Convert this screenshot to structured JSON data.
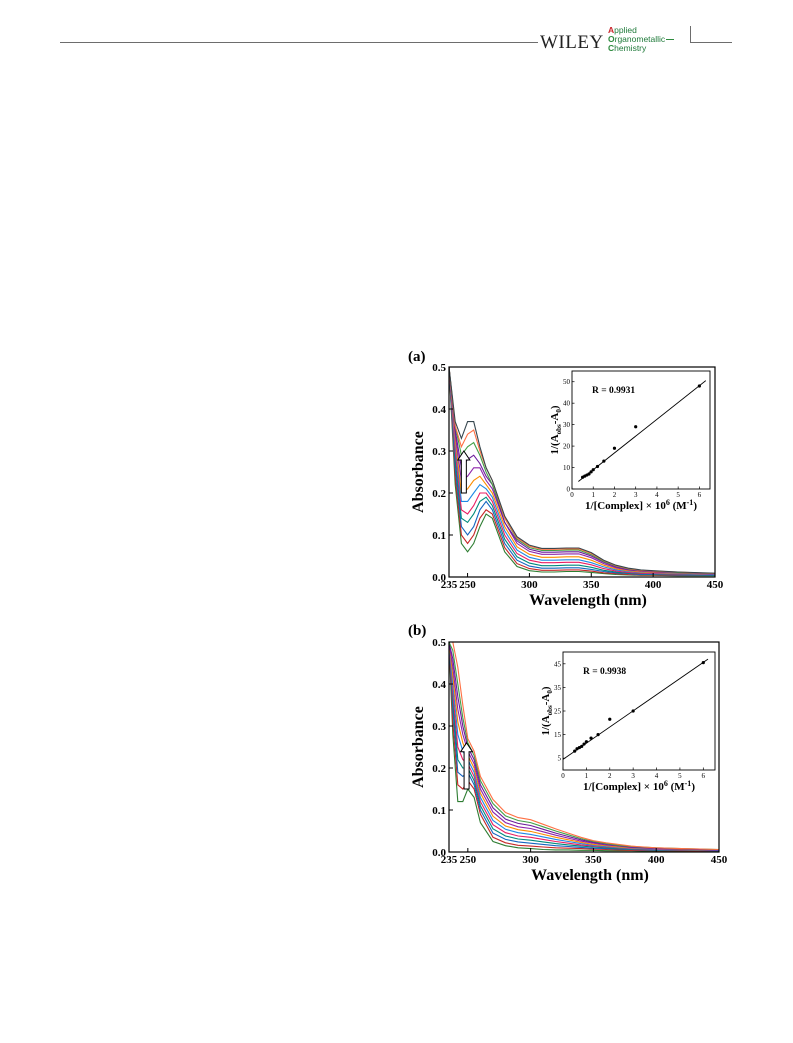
{
  "header": {
    "publisher": "WILEY",
    "journal_lines": [
      {
        "first": "A",
        "rest": "pplied"
      },
      {
        "first": "O",
        "rest": "rganometallic"
      },
      {
        "first": "C",
        "rest": "hemistry"
      }
    ]
  },
  "colors": {
    "journal_accent_red": "#c9252c",
    "journal_accent_green": "#2e8b3e",
    "curve_colors": [
      "#2e7d32",
      "#c62828",
      "#1565c0",
      "#00897b",
      "#e91e63",
      "#1e88e5",
      "#fb8c00",
      "#8e24aa",
      "#6a1b9a",
      "#43a047",
      "#ff7043",
      "#37474f"
    ]
  },
  "chart_data": [
    {
      "panel": "(a)",
      "type": "line",
      "xlabel": "Wavelength (nm)",
      "ylabel": "Absorbance",
      "xlim": [
        235,
        450
      ],
      "ylim": [
        0,
        0.5
      ],
      "xticks": [
        "235",
        "250",
        "300",
        "350",
        "400",
        "450"
      ],
      "yticks": [
        "0.0",
        "0.1",
        "0.2",
        "0.3",
        "0.4",
        "0.5"
      ],
      "x": [
        235,
        240,
        245,
        250,
        255,
        260,
        265,
        270,
        280,
        290,
        300,
        310,
        320,
        330,
        340,
        350,
        360,
        370,
        380,
        390,
        400,
        420,
        450
      ],
      "series": [
        {
          "values": [
            0.5,
            0.22,
            0.08,
            0.06,
            0.08,
            0.12,
            0.15,
            0.14,
            0.06,
            0.025,
            0.015,
            0.012,
            0.012,
            0.013,
            0.013,
            0.011,
            0.008,
            0.006,
            0.005,
            0.004,
            0.004,
            0.003,
            0.003
          ]
        },
        {
          "values": [
            0.5,
            0.24,
            0.1,
            0.08,
            0.1,
            0.14,
            0.16,
            0.15,
            0.07,
            0.032,
            0.02,
            0.016,
            0.016,
            0.017,
            0.017,
            0.014,
            0.01,
            0.008,
            0.006,
            0.005,
            0.005,
            0.004,
            0.004
          ]
        },
        {
          "values": [
            0.5,
            0.26,
            0.12,
            0.1,
            0.12,
            0.16,
            0.18,
            0.16,
            0.08,
            0.04,
            0.026,
            0.021,
            0.021,
            0.022,
            0.022,
            0.018,
            0.013,
            0.01,
            0.008,
            0.006,
            0.006,
            0.005,
            0.004
          ]
        },
        {
          "values": [
            0.5,
            0.28,
            0.14,
            0.13,
            0.15,
            0.18,
            0.19,
            0.17,
            0.09,
            0.048,
            0.033,
            0.027,
            0.027,
            0.028,
            0.028,
            0.023,
            0.016,
            0.012,
            0.009,
            0.008,
            0.007,
            0.006,
            0.005
          ]
        },
        {
          "values": [
            0.5,
            0.3,
            0.16,
            0.15,
            0.17,
            0.2,
            0.2,
            0.18,
            0.1,
            0.056,
            0.04,
            0.034,
            0.034,
            0.035,
            0.035,
            0.029,
            0.02,
            0.014,
            0.011,
            0.009,
            0.008,
            0.007,
            0.006
          ]
        },
        {
          "values": [
            0.5,
            0.32,
            0.18,
            0.18,
            0.2,
            0.22,
            0.21,
            0.19,
            0.11,
            0.064,
            0.047,
            0.04,
            0.04,
            0.041,
            0.041,
            0.034,
            0.024,
            0.017,
            0.013,
            0.011,
            0.01,
            0.008,
            0.006
          ]
        },
        {
          "values": [
            0.5,
            0.33,
            0.2,
            0.21,
            0.23,
            0.24,
            0.22,
            0.2,
            0.12,
            0.072,
            0.054,
            0.047,
            0.047,
            0.048,
            0.048,
            0.04,
            0.028,
            0.019,
            0.015,
            0.012,
            0.011,
            0.009,
            0.007
          ]
        },
        {
          "values": [
            0.5,
            0.34,
            0.23,
            0.24,
            0.26,
            0.26,
            0.23,
            0.21,
            0.13,
            0.08,
            0.061,
            0.054,
            0.054,
            0.055,
            0.055,
            0.046,
            0.032,
            0.022,
            0.017,
            0.014,
            0.012,
            0.01,
            0.007
          ]
        },
        {
          "values": [
            0.5,
            0.35,
            0.26,
            0.28,
            0.29,
            0.27,
            0.24,
            0.22,
            0.13,
            0.086,
            0.066,
            0.059,
            0.059,
            0.06,
            0.06,
            0.05,
            0.035,
            0.024,
            0.018,
            0.015,
            0.013,
            0.011,
            0.008
          ]
        },
        {
          "values": [
            0.5,
            0.36,
            0.29,
            0.31,
            0.32,
            0.29,
            0.25,
            0.22,
            0.14,
            0.09,
            0.07,
            0.063,
            0.063,
            0.064,
            0.064,
            0.053,
            0.037,
            0.026,
            0.019,
            0.016,
            0.014,
            0.011,
            0.008
          ]
        },
        {
          "values": [
            0.5,
            0.36,
            0.31,
            0.34,
            0.35,
            0.3,
            0.26,
            0.23,
            0.14,
            0.093,
            0.073,
            0.066,
            0.066,
            0.067,
            0.067,
            0.056,
            0.039,
            0.027,
            0.02,
            0.016,
            0.014,
            0.012,
            0.008
          ]
        },
        {
          "values": [
            0.5,
            0.37,
            0.33,
            0.37,
            0.37,
            0.31,
            0.26,
            0.23,
            0.145,
            0.096,
            0.076,
            0.068,
            0.068,
            0.069,
            0.069,
            0.058,
            0.04,
            0.028,
            0.021,
            0.017,
            0.015,
            0.012,
            0.009
          ]
        }
      ],
      "arrow": {
        "x": 247,
        "y_from": 0.2,
        "y_to": 0.3
      },
      "inset": {
        "type": "scatter",
        "annotation": "R = 0.9931",
        "xlim": [
          0,
          6.5
        ],
        "ylim": [
          0,
          55
        ],
        "xticks": [
          "0",
          "1",
          "2",
          "3",
          "4",
          "5",
          "6"
        ],
        "yticks": [
          "0",
          "10",
          "20",
          "30",
          "40",
          "50"
        ],
        "x": [
          0.5,
          0.6,
          0.7,
          0.8,
          0.9,
          1.0,
          1.2,
          1.5,
          2.0,
          3.0,
          6.0
        ],
        "y": [
          5.5,
          6.0,
          6.5,
          7.0,
          8.0,
          9.0,
          10.5,
          13.0,
          19.0,
          29.0,
          48.0
        ],
        "fit": {
          "x": [
            0.3,
            6.3
          ],
          "y": [
            3.5,
            50.5
          ]
        }
      }
    },
    {
      "panel": "(b)",
      "type": "line",
      "xlabel": "Wavelength (nm)",
      "ylabel": "Absorbance",
      "xlim": [
        235,
        450
      ],
      "ylim": [
        0,
        0.5
      ],
      "xticks": [
        "235",
        "250",
        "300",
        "350",
        "400",
        "450"
      ],
      "yticks": [
        "0.0",
        "0.1",
        "0.2",
        "0.3",
        "0.4",
        "0.5"
      ],
      "x": [
        235,
        238,
        242,
        246,
        250,
        255,
        260,
        270,
        280,
        290,
        300,
        310,
        320,
        330,
        340,
        350,
        360,
        370,
        380,
        400,
        420,
        450
      ],
      "series": [
        {
          "values": [
            0.5,
            0.28,
            0.12,
            0.12,
            0.15,
            0.13,
            0.07,
            0.025,
            0.015,
            0.01,
            0.008,
            0.006,
            0.005,
            0.005,
            0.004,
            0.004,
            0.003,
            0.003,
            0.003,
            0.002,
            0.002,
            0.002
          ]
        },
        {
          "values": [
            0.5,
            0.31,
            0.16,
            0.15,
            0.17,
            0.15,
            0.09,
            0.035,
            0.022,
            0.016,
            0.014,
            0.012,
            0.01,
            0.009,
            0.008,
            0.007,
            0.006,
            0.005,
            0.004,
            0.003,
            0.003,
            0.002
          ]
        },
        {
          "values": [
            0.5,
            0.34,
            0.19,
            0.18,
            0.19,
            0.16,
            0.1,
            0.045,
            0.03,
            0.024,
            0.021,
            0.018,
            0.015,
            0.013,
            0.011,
            0.009,
            0.008,
            0.007,
            0.006,
            0.004,
            0.004,
            0.003
          ]
        },
        {
          "values": [
            0.5,
            0.36,
            0.22,
            0.2,
            0.2,
            0.17,
            0.11,
            0.055,
            0.038,
            0.031,
            0.028,
            0.024,
            0.02,
            0.017,
            0.014,
            0.012,
            0.01,
            0.008,
            0.007,
            0.005,
            0.004,
            0.003
          ]
        },
        {
          "values": [
            0.5,
            0.38,
            0.25,
            0.22,
            0.21,
            0.18,
            0.12,
            0.065,
            0.046,
            0.038,
            0.035,
            0.03,
            0.025,
            0.021,
            0.017,
            0.014,
            0.012,
            0.01,
            0.008,
            0.006,
            0.005,
            0.004
          ]
        },
        {
          "values": [
            0.5,
            0.4,
            0.28,
            0.24,
            0.22,
            0.19,
            0.13,
            0.075,
            0.054,
            0.046,
            0.042,
            0.036,
            0.03,
            0.025,
            0.02,
            0.016,
            0.013,
            0.011,
            0.009,
            0.007,
            0.006,
            0.004
          ]
        },
        {
          "values": [
            0.5,
            0.42,
            0.31,
            0.26,
            0.23,
            0.2,
            0.14,
            0.085,
            0.062,
            0.053,
            0.049,
            0.042,
            0.035,
            0.029,
            0.023,
            0.018,
            0.015,
            0.012,
            0.01,
            0.008,
            0.006,
            0.005
          ]
        },
        {
          "values": [
            0.5,
            0.44,
            0.34,
            0.28,
            0.24,
            0.21,
            0.15,
            0.095,
            0.07,
            0.06,
            0.056,
            0.048,
            0.04,
            0.033,
            0.026,
            0.021,
            0.017,
            0.014,
            0.011,
            0.008,
            0.007,
            0.005
          ]
        },
        {
          "values": [
            0.5,
            0.46,
            0.37,
            0.3,
            0.25,
            0.22,
            0.16,
            0.105,
            0.078,
            0.068,
            0.063,
            0.054,
            0.045,
            0.037,
            0.029,
            0.023,
            0.019,
            0.015,
            0.012,
            0.009,
            0.007,
            0.005
          ]
        },
        {
          "values": [
            0.5,
            0.48,
            0.4,
            0.32,
            0.26,
            0.23,
            0.17,
            0.115,
            0.086,
            0.075,
            0.07,
            0.06,
            0.05,
            0.041,
            0.032,
            0.025,
            0.02,
            0.016,
            0.013,
            0.01,
            0.008,
            0.006
          ]
        },
        {
          "values": [
            0.5,
            0.5,
            0.44,
            0.35,
            0.27,
            0.24,
            0.18,
            0.125,
            0.094,
            0.082,
            0.077,
            0.066,
            0.055,
            0.045,
            0.035,
            0.027,
            0.022,
            0.018,
            0.014,
            0.01,
            0.008,
            0.006
          ]
        }
      ],
      "arrow": {
        "x": 249,
        "y_from": 0.15,
        "y_to": 0.26
      },
      "inset": {
        "type": "scatter",
        "annotation": "R = 0.9938",
        "xlim": [
          0,
          6.5
        ],
        "ylim": [
          0,
          50
        ],
        "xticks": [
          "0",
          "1",
          "2",
          "3",
          "4",
          "5",
          "6"
        ],
        "yticks": [
          "5",
          "15",
          "25",
          "35",
          "45"
        ],
        "x": [
          0.5,
          0.6,
          0.7,
          0.8,
          0.9,
          1.0,
          1.2,
          1.5,
          2.0,
          3.0,
          6.0
        ],
        "y": [
          8.0,
          9.0,
          9.5,
          10.0,
          11.0,
          12.0,
          13.5,
          15.0,
          21.5,
          25.0,
          45.5
        ],
        "fit": {
          "x": [
            0.0,
            6.2
          ],
          "y": [
            4.5,
            47.0
          ]
        }
      }
    }
  ]
}
